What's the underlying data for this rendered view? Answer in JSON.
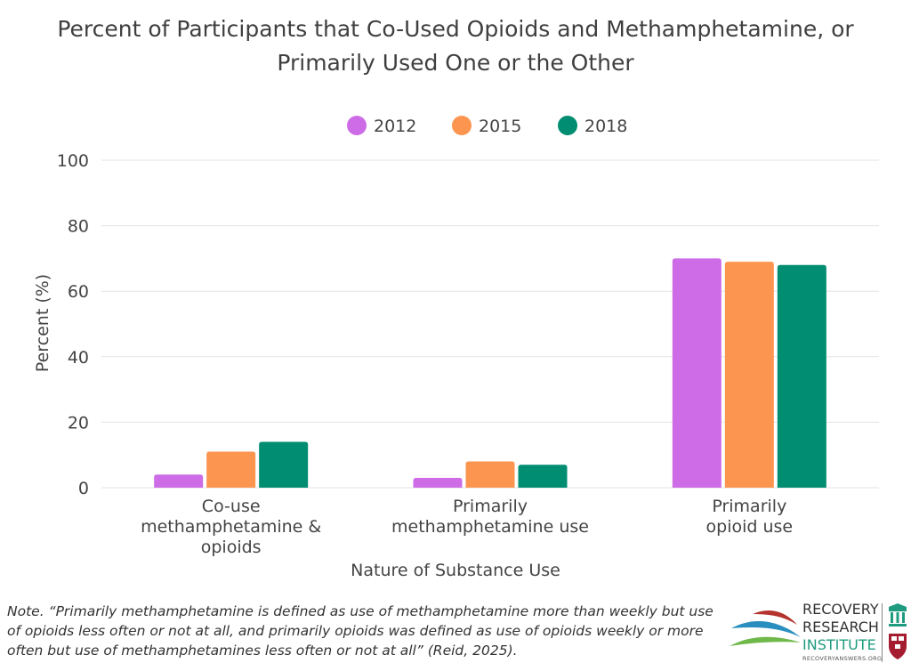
{
  "title_lines": [
    "Percent of Participants that Co-Used Opioids and Methamphetamine, or",
    "Primarily Used One or the Other"
  ],
  "chart_data": {
    "type": "bar",
    "title": "Percent of Participants that Co-Used Opioids and Methamphetamine, or Primarily Used One or the Other",
    "xlabel": "Nature of Substance Use",
    "ylabel": "Percent (%)",
    "ylim": [
      0,
      100
    ],
    "yticks": [
      0,
      20,
      40,
      60,
      80,
      100
    ],
    "grid": true,
    "legend_position": "top-center",
    "categories": [
      [
        "Co-use",
        "methamphetamine &",
        "opioids"
      ],
      [
        "Primarily",
        "methamphetamine use"
      ],
      [
        "Primarily",
        "opioid use"
      ]
    ],
    "series": [
      {
        "name": "2012",
        "color": "#cd6ce6",
        "values": [
          4,
          3,
          70
        ]
      },
      {
        "name": "2015",
        "color": "#fb9550",
        "values": [
          11,
          8,
          69
        ]
      },
      {
        "name": "2018",
        "color": "#008d71",
        "values": [
          14,
          7,
          68
        ]
      }
    ]
  },
  "note": "Note. “Primarily methamphetamine is defined as use of methamphetamine more than weekly but use of opioids less often or not at all, and primarily opioids was defined as use of opioids weekly or more often but use of methamphetamines less often or not at all” (Reid, 2025).",
  "logo": {
    "line1": "RECOVERY",
    "line2": "RESEARCH",
    "line3": "INSTITUTE",
    "site": "RECOVERYANSWERS.ORG"
  }
}
